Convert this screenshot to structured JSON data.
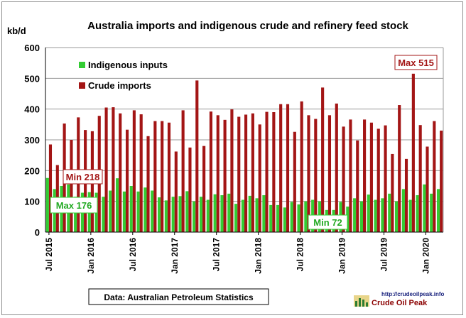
{
  "chart_data": {
    "type": "bar",
    "title": "Australia imports and indigenous crude and refinery feed stock",
    "ylabel": "kb/d",
    "ylim": [
      0,
      600
    ],
    "yticks": [
      "0",
      "100",
      "200",
      "300",
      "400",
      "500",
      "600"
    ],
    "grid": true,
    "legend_position": "top-left",
    "x_tick_labels": [
      "Jul 2015",
      "Jan 2016",
      "Jul 2016",
      "Jan 2017",
      "Jul 2017",
      "Jan 2018",
      "Jul 2018",
      "Jan 2019",
      "Jul 2019",
      "Jan 2020"
    ],
    "x_start": "2015-07",
    "x_end": "2020-03",
    "series": [
      {
        "name": "Indigenous inputs",
        "color": "#33cc33",
        "values": [
          176,
          140,
          150,
          155,
          115,
          128,
          130,
          128,
          115,
          135,
          175,
          132,
          150,
          132,
          145,
          135,
          113,
          103,
          115,
          117,
          133,
          100,
          115,
          105,
          123,
          120,
          125,
          92,
          105,
          118,
          110,
          120,
          88,
          88,
          80,
          98,
          90,
          100,
          105,
          100,
          72,
          72,
          98,
          83,
          110,
          100,
          122,
          105,
          110,
          125,
          100,
          140,
          105,
          120,
          155,
          125,
          140
        ]
      },
      {
        "name": "Crude imports",
        "color": "#a31515",
        "values": [
          285,
          218,
          353,
          300,
          373,
          332,
          328,
          378,
          405,
          406,
          386,
          333,
          396,
          383,
          312,
          361,
          361,
          356,
          262,
          396,
          275,
          493,
          280,
          392,
          380,
          365,
          399,
          375,
          382,
          386,
          350,
          391,
          390,
          416,
          416,
          326,
          425,
          380,
          368,
          470,
          380,
          418,
          343,
          366,
          298,
          366,
          356,
          336,
          347,
          254,
          413,
          238,
          515,
          348,
          278,
          361,
          330
        ]
      }
    ],
    "annotations": [
      {
        "label": "Max 515",
        "series": "Crude imports"
      },
      {
        "label": "Min 218",
        "series": "Crude imports"
      },
      {
        "label": "Max 176",
        "series": "Indigenous inputs"
      },
      {
        "label": "Min 72",
        "series": "Indigenous inputs"
      }
    ]
  },
  "source_note": "Data: Australian Petroleum Statistics",
  "logo": {
    "url": "http://crudeoilpeak.info",
    "name": "Crude Oil Peak"
  }
}
